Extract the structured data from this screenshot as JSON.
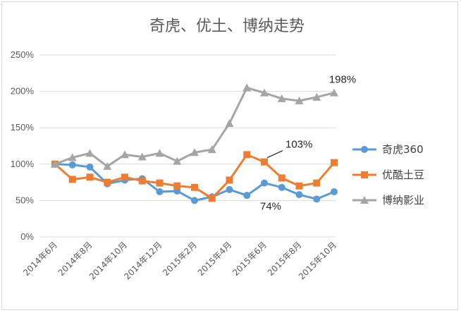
{
  "chart_data": {
    "type": "line",
    "title": "奇虎、优土、博纳走势",
    "xlabel": "",
    "ylabel": "",
    "ylim": [
      0,
      250
    ],
    "y_ticks": [
      "0%",
      "50%",
      "100%",
      "150%",
      "200%",
      "250%"
    ],
    "x_tick_labels": [
      "2014年6月",
      "2014年8月",
      "2014年10月",
      "2014年12月",
      "2015年2月",
      "2015年4月",
      "2015年6月",
      "2015年8月",
      "2015年10月"
    ],
    "grid": true,
    "legend_position": "right",
    "series": [
      {
        "name": "奇虎360",
        "color": "#5b9bd5",
        "marker": "circle",
        "values": [
          100,
          99,
          96,
          73,
          78,
          80,
          62,
          63,
          50,
          55,
          65,
          57,
          74,
          68,
          58,
          52,
          62
        ]
      },
      {
        "name": "优酷土豆",
        "color": "#ed7d31",
        "marker": "square",
        "values": [
          100,
          79,
          82,
          75,
          82,
          77,
          74,
          70,
          68,
          53,
          78,
          113,
          103,
          81,
          70,
          74,
          102
        ]
      },
      {
        "name": "博纳影业",
        "color": "#a5a5a5",
        "marker": "triangle",
        "values": [
          100,
          109,
          115,
          97,
          113,
          110,
          115,
          104,
          116,
          120,
          156,
          205,
          198,
          190,
          187,
          192,
          198
        ]
      }
    ],
    "annotations": [
      {
        "text": "198%",
        "series": 2,
        "index": 16
      },
      {
        "text": "103%",
        "series": 1,
        "index": 12
      },
      {
        "text": "74%",
        "series": 0,
        "index": 12
      }
    ]
  }
}
